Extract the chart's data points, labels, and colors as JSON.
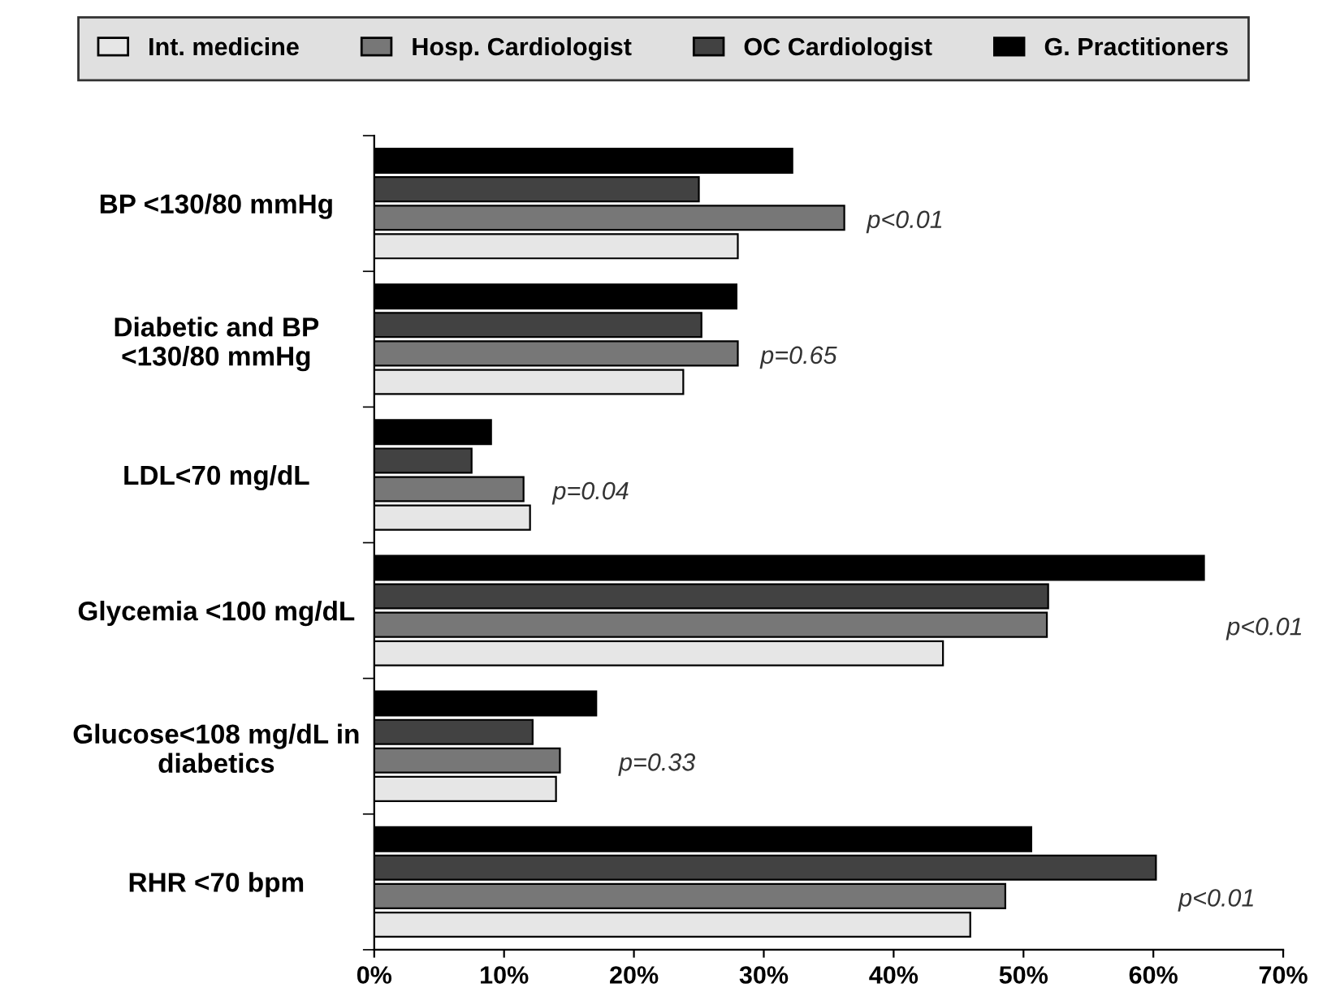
{
  "chart_data": {
    "type": "bar",
    "orientation": "horizontal",
    "categories": [
      "BP <130/80 mmHg",
      "Diabetic and BP\n<130/80 mmHg",
      "LDL<70 mg/dL",
      "Glycemia <100 mg/dL",
      "Glucose<108 mg/dL in\ndiabetics",
      "RHR <70 bpm"
    ],
    "series": [
      {
        "name": "Int. medicine",
        "color": "#e6e6e6",
        "values": [
          28.0,
          23.8,
          12.0,
          43.8,
          14.0,
          45.9
        ]
      },
      {
        "name": "Hosp. Cardiologist",
        "color": "#777777",
        "values": [
          36.2,
          28.0,
          11.5,
          51.8,
          14.3,
          48.6
        ]
      },
      {
        "name": "OC Cardiologist",
        "color": "#424242",
        "values": [
          25.0,
          25.2,
          7.5,
          51.9,
          12.2,
          60.2
        ]
      },
      {
        "name": "G. Practitioners",
        "color": "#000000",
        "values": [
          32.2,
          27.9,
          9.0,
          63.9,
          17.1,
          50.6
        ]
      }
    ],
    "xlim": [
      0,
      70
    ],
    "xticks": [
      {
        "value": 0,
        "label": "0%"
      },
      {
        "value": 10,
        "label": "10%"
      },
      {
        "value": 20,
        "label": "20%"
      },
      {
        "value": 30,
        "label": "30%"
      },
      {
        "value": 40,
        "label": "40%"
      },
      {
        "value": 50,
        "label": "50%"
      },
      {
        "value": 60,
        "label": "60%"
      },
      {
        "value": 70,
        "label": "70%"
      }
    ],
    "annotations": [
      "p<0.01",
      "p=0.65",
      "p=0.04",
      "p<0.01",
      "p=0.33",
      "p<0.01"
    ],
    "legend": "top",
    "grid": false
  }
}
